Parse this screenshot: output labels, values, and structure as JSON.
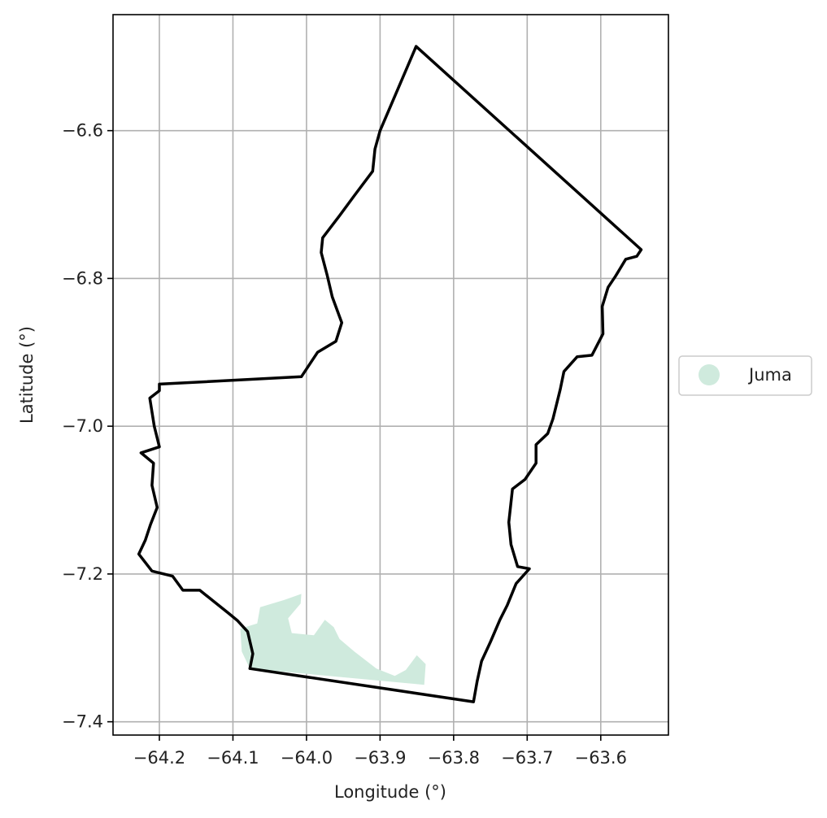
{
  "map": {
    "xlabel": "Longitude (°)",
    "ylabel": "Latitude (°)",
    "xlim": [
      -64.263,
      -63.508
    ],
    "ylim": [
      -7.418,
      -6.443
    ],
    "grid": true,
    "xticks": [
      -64.2,
      -64.1,
      -64.0,
      -63.9,
      -63.8,
      -63.7,
      -63.6
    ],
    "xtick_labels": [
      "−64.2",
      "−64.1",
      "−64.0",
      "−63.9",
      "−63.8",
      "−63.7",
      "−63.6"
    ],
    "yticks": [
      -6.6,
      -6.8,
      -7.0,
      -7.2,
      -7.4
    ],
    "ytick_labels": [
      "−6.6",
      "−6.8",
      "−7.0",
      "−7.2",
      "−7.4"
    ],
    "legend": {
      "position": "center-right-outside",
      "entries": [
        {
          "label": "Juma",
          "color": "#cfeadd"
        }
      ]
    },
    "colors": {
      "boundary": "#000000",
      "juma": "#cfeadd",
      "grid": "#b0b0b0"
    },
    "boundary": [
      [
        -63.851,
        -6.486
      ],
      [
        -63.545,
        -6.761
      ],
      [
        -63.551,
        -6.77
      ],
      [
        -63.566,
        -6.774
      ],
      [
        -63.58,
        -6.797
      ],
      [
        -63.59,
        -6.812
      ],
      [
        -63.598,
        -6.838
      ],
      [
        -63.597,
        -6.875
      ],
      [
        -63.612,
        -6.904
      ],
      [
        -63.632,
        -6.906
      ],
      [
        -63.65,
        -6.926
      ],
      [
        -63.655,
        -6.95
      ],
      [
        -63.66,
        -6.97
      ],
      [
        -63.665,
        -6.99
      ],
      [
        -63.672,
        -7.01
      ],
      [
        -63.688,
        -7.025
      ],
      [
        -63.688,
        -7.05
      ],
      [
        -63.703,
        -7.072
      ],
      [
        -63.72,
        -7.085
      ],
      [
        -63.725,
        -7.13
      ],
      [
        -63.722,
        -7.16
      ],
      [
        -63.713,
        -7.19
      ],
      [
        -63.697,
        -7.193
      ],
      [
        -63.715,
        -7.213
      ],
      [
        -63.727,
        -7.242
      ],
      [
        -63.737,
        -7.262
      ],
      [
        -63.75,
        -7.292
      ],
      [
        -63.762,
        -7.318
      ],
      [
        -63.768,
        -7.345
      ],
      [
        -63.773,
        -7.373
      ],
      [
        -64.077,
        -7.328
      ],
      [
        -64.073,
        -7.308
      ],
      [
        -64.08,
        -7.278
      ],
      [
        -64.094,
        -7.263
      ],
      [
        -64.106,
        -7.253
      ],
      [
        -64.125,
        -7.238
      ],
      [
        -64.145,
        -7.222
      ],
      [
        -64.168,
        -7.222
      ],
      [
        -64.182,
        -7.203
      ],
      [
        -64.21,
        -7.196
      ],
      [
        -64.228,
        -7.173
      ],
      [
        -64.219,
        -7.154
      ],
      [
        -64.212,
        -7.133
      ],
      [
        -64.203,
        -7.11
      ],
      [
        -64.21,
        -7.08
      ],
      [
        -64.208,
        -7.05
      ],
      [
        -64.225,
        -7.036
      ],
      [
        -64.2,
        -7.028
      ],
      [
        -64.207,
        -7.0
      ],
      [
        -64.213,
        -6.962
      ],
      [
        -64.2,
        -6.952
      ],
      [
        -64.2,
        -6.943
      ],
      [
        -64.007,
        -6.933
      ],
      [
        -63.985,
        -6.9
      ],
      [
        -63.96,
        -6.885
      ],
      [
        -63.952,
        -6.86
      ],
      [
        -63.965,
        -6.825
      ],
      [
        -63.972,
        -6.795
      ],
      [
        -63.98,
        -6.765
      ],
      [
        -63.978,
        -6.745
      ],
      [
        -63.955,
        -6.715
      ],
      [
        -63.935,
        -6.688
      ],
      [
        -63.91,
        -6.655
      ],
      [
        -63.907,
        -6.625
      ],
      [
        -63.9,
        -6.6
      ],
      [
        -63.851,
        -6.486
      ]
    ],
    "juma_area": [
      [
        -64.09,
        -7.274
      ],
      [
        -64.067,
        -7.267
      ],
      [
        -64.063,
        -7.245
      ],
      [
        -64.03,
        -7.235
      ],
      [
        -64.007,
        -7.227
      ],
      [
        -64.008,
        -7.24
      ],
      [
        -64.025,
        -7.26
      ],
      [
        -64.02,
        -7.28
      ],
      [
        -63.99,
        -7.283
      ],
      [
        -63.975,
        -7.262
      ],
      [
        -63.963,
        -7.272
      ],
      [
        -63.955,
        -7.288
      ],
      [
        -63.935,
        -7.305
      ],
      [
        -63.905,
        -7.328
      ],
      [
        -63.88,
        -7.338
      ],
      [
        -63.865,
        -7.33
      ],
      [
        -63.85,
        -7.31
      ],
      [
        -63.838,
        -7.322
      ],
      [
        -63.84,
        -7.35
      ],
      [
        -64.077,
        -7.328
      ],
      [
        -64.088,
        -7.305
      ],
      [
        -64.09,
        -7.274
      ]
    ]
  }
}
